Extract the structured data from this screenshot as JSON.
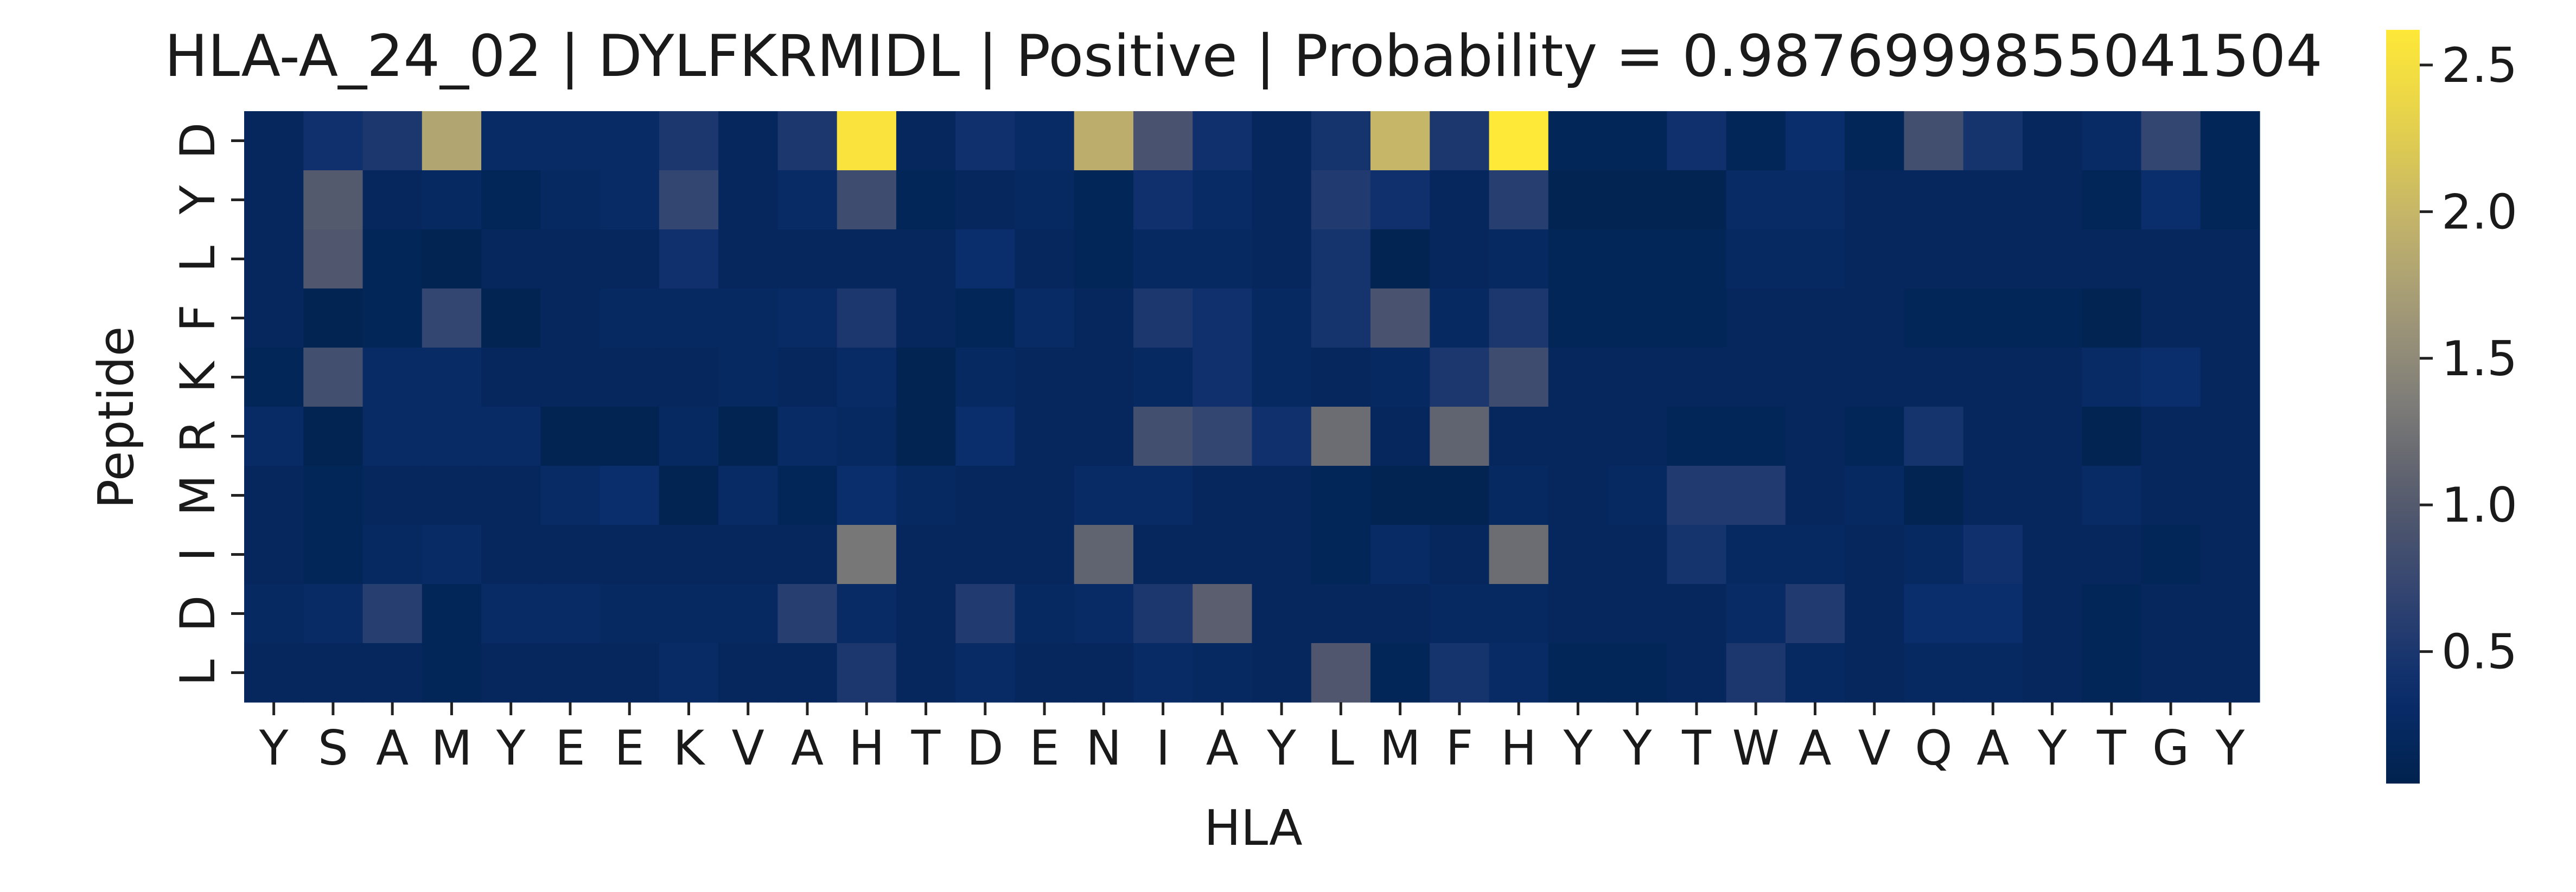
{
  "chart_data": {
    "type": "heatmap",
    "title": "HLA-A_24_02 | DYLFKRMIDL | Positive | Probability = 0.9876999855041504",
    "xlabel": "HLA",
    "ylabel": "Peptide",
    "x_labels": [
      "Y",
      "S",
      "A",
      "M",
      "Y",
      "E",
      "E",
      "K",
      "V",
      "A",
      "H",
      "T",
      "D",
      "E",
      "N",
      "I",
      "A",
      "Y",
      "L",
      "M",
      "F",
      "H",
      "Y",
      "Y",
      "T",
      "W",
      "A",
      "V",
      "Q",
      "A",
      "Y",
      "T",
      "G",
      "Y"
    ],
    "y_labels": [
      "D",
      "Y",
      "L",
      "F",
      "K",
      "R",
      "M",
      "I",
      "D",
      "L"
    ],
    "colormap": "cividis",
    "vmin": 0.05,
    "vmax": 2.62,
    "colorbar_ticks": [
      {
        "value": 0.5,
        "label": "0.5"
      },
      {
        "value": 1.0,
        "label": "1.0"
      },
      {
        "value": 1.5,
        "label": "1.5"
      },
      {
        "value": 2.0,
        "label": "2.0"
      },
      {
        "value": 2.5,
        "label": "2.5"
      }
    ],
    "values": [
      [
        0.2,
        0.4,
        0.5,
        1.8,
        0.3,
        0.3,
        0.3,
        0.5,
        0.2,
        0.5,
        2.55,
        0.2,
        0.4,
        0.3,
        1.9,
        0.9,
        0.4,
        0.2,
        0.45,
        2.0,
        0.5,
        2.62,
        0.15,
        0.15,
        0.4,
        0.15,
        0.35,
        0.15,
        0.85,
        0.45,
        0.2,
        0.3,
        0.7,
        0.15
      ],
      [
        0.2,
        1.0,
        0.2,
        0.25,
        0.15,
        0.25,
        0.3,
        0.7,
        0.2,
        0.3,
        0.8,
        0.15,
        0.2,
        0.25,
        0.15,
        0.4,
        0.3,
        0.2,
        0.55,
        0.4,
        0.2,
        0.6,
        0.1,
        0.1,
        0.1,
        0.3,
        0.3,
        0.2,
        0.2,
        0.2,
        0.2,
        0.15,
        0.35,
        0.15
      ],
      [
        0.2,
        0.95,
        0.15,
        0.1,
        0.2,
        0.2,
        0.2,
        0.4,
        0.2,
        0.2,
        0.2,
        0.2,
        0.35,
        0.2,
        0.15,
        0.25,
        0.25,
        0.2,
        0.45,
        0.1,
        0.2,
        0.25,
        0.15,
        0.15,
        0.15,
        0.25,
        0.25,
        0.2,
        0.2,
        0.2,
        0.2,
        0.2,
        0.2,
        0.2
      ],
      [
        0.2,
        0.1,
        0.15,
        0.7,
        0.1,
        0.2,
        0.25,
        0.25,
        0.25,
        0.3,
        0.5,
        0.2,
        0.15,
        0.3,
        0.2,
        0.5,
        0.4,
        0.25,
        0.45,
        0.9,
        0.25,
        0.5,
        0.15,
        0.15,
        0.15,
        0.2,
        0.2,
        0.2,
        0.15,
        0.15,
        0.15,
        0.1,
        0.2,
        0.2
      ],
      [
        0.15,
        0.85,
        0.3,
        0.3,
        0.2,
        0.2,
        0.2,
        0.2,
        0.25,
        0.2,
        0.3,
        0.1,
        0.25,
        0.2,
        0.2,
        0.25,
        0.4,
        0.25,
        0.2,
        0.25,
        0.5,
        0.8,
        0.2,
        0.2,
        0.2,
        0.2,
        0.2,
        0.2,
        0.2,
        0.2,
        0.2,
        0.3,
        0.35,
        0.2
      ],
      [
        0.3,
        0.1,
        0.3,
        0.3,
        0.3,
        0.1,
        0.1,
        0.25,
        0.1,
        0.3,
        0.25,
        0.1,
        0.35,
        0.2,
        0.2,
        0.85,
        0.7,
        0.4,
        1.2,
        0.2,
        1.1,
        0.2,
        0.2,
        0.2,
        0.15,
        0.15,
        0.2,
        0.15,
        0.45,
        0.2,
        0.2,
        0.1,
        0.2,
        0.2
      ],
      [
        0.2,
        0.15,
        0.2,
        0.2,
        0.2,
        0.3,
        0.35,
        0.1,
        0.3,
        0.15,
        0.35,
        0.25,
        0.2,
        0.2,
        0.3,
        0.3,
        0.2,
        0.2,
        0.15,
        0.1,
        0.1,
        0.25,
        0.2,
        0.25,
        0.55,
        0.55,
        0.2,
        0.25,
        0.1,
        0.2,
        0.2,
        0.3,
        0.2,
        0.2
      ],
      [
        0.2,
        0.15,
        0.25,
        0.3,
        0.2,
        0.2,
        0.2,
        0.2,
        0.2,
        0.2,
        1.3,
        0.2,
        0.2,
        0.2,
        1.1,
        0.2,
        0.2,
        0.2,
        0.15,
        0.3,
        0.2,
        1.2,
        0.2,
        0.2,
        0.45,
        0.25,
        0.25,
        0.2,
        0.25,
        0.4,
        0.2,
        0.2,
        0.15,
        0.2
      ],
      [
        0.25,
        0.3,
        0.6,
        0.15,
        0.3,
        0.3,
        0.25,
        0.25,
        0.25,
        0.6,
        0.3,
        0.2,
        0.55,
        0.25,
        0.3,
        0.5,
        1.05,
        0.2,
        0.2,
        0.2,
        0.25,
        0.25,
        0.2,
        0.2,
        0.2,
        0.3,
        0.55,
        0.2,
        0.35,
        0.35,
        0.2,
        0.15,
        0.2,
        0.2
      ],
      [
        0.2,
        0.2,
        0.2,
        0.15,
        0.2,
        0.2,
        0.2,
        0.3,
        0.2,
        0.2,
        0.5,
        0.2,
        0.3,
        0.2,
        0.2,
        0.3,
        0.25,
        0.2,
        0.95,
        0.15,
        0.45,
        0.3,
        0.15,
        0.15,
        0.2,
        0.5,
        0.25,
        0.2,
        0.25,
        0.25,
        0.2,
        0.15,
        0.2,
        0.2
      ]
    ]
  }
}
